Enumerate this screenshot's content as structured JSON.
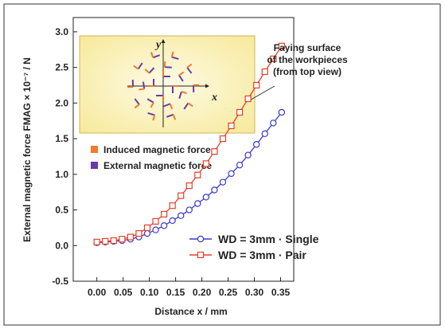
{
  "chart_data": {
    "type": "line",
    "xlabel": "Distance x / mm",
    "ylabel": "External magnetic force  FMAG × 10⁻⁷ / N",
    "x": [
      0,
      0.016,
      0.032,
      0.048,
      0.064,
      0.08,
      0.096,
      0.112,
      0.128,
      0.144,
      0.16,
      0.176,
      0.192,
      0.208,
      0.224,
      0.24,
      0.256,
      0.272,
      0.288,
      0.304,
      0.32,
      0.336,
      0.352
    ],
    "series": [
      {
        "name": "WD = 3mm · Single",
        "color": "#3a3ad0",
        "marker": "circle",
        "values": [
          0.04,
          0.05,
          0.06,
          0.07,
          0.09,
          0.12,
          0.17,
          0.22,
          0.28,
          0.35,
          0.42,
          0.5,
          0.59,
          0.68,
          0.78,
          0.89,
          1.01,
          1.13,
          1.27,
          1.42,
          1.57,
          1.72,
          1.87
        ]
      },
      {
        "name": "WD = 3mm · Pair",
        "color": "#e5402a",
        "marker": "square",
        "values": [
          0.05,
          0.06,
          0.07,
          0.09,
          0.12,
          0.17,
          0.25,
          0.34,
          0.44,
          0.56,
          0.7,
          0.84,
          0.99,
          1.15,
          1.32,
          1.5,
          1.68,
          1.87,
          2.06,
          2.25,
          2.44,
          2.62,
          2.8
        ]
      }
    ],
    "xlim": [
      -0.045,
      0.375
    ],
    "ylim": [
      -0.5,
      3.2
    ],
    "xticks": [
      {
        "value": 0,
        "label": "0.00"
      },
      {
        "value": 0.05,
        "label": "0.05"
      },
      {
        "value": 0.1,
        "label": "0.10"
      },
      {
        "value": 0.15,
        "label": "0.15"
      },
      {
        "value": 0.2,
        "label": "0.20"
      },
      {
        "value": 0.25,
        "label": "0.25"
      },
      {
        "value": 0.3,
        "label": "0.30"
      },
      {
        "value": 0.35,
        "label": "0.35"
      }
    ],
    "yticks": [
      {
        "value": -0.5,
        "label": "-0.5"
      },
      {
        "value": 0,
        "label": "0.0"
      },
      {
        "value": 0.5,
        "label": "0.5"
      },
      {
        "value": 1,
        "label": "1.0"
      },
      {
        "value": 1.5,
        "label": "1.5"
      },
      {
        "value": 2,
        "label": "2.0"
      },
      {
        "value": 2.5,
        "label": "2.5"
      },
      {
        "value": 3,
        "label": "3.0"
      }
    ],
    "legend": "lower right",
    "inset": {
      "axis_x": "x",
      "axis_y": "y",
      "legend": [
        {
          "name": "Induced magnetic force",
          "color": "#f07b2a"
        },
        {
          "name": "External magnetic force",
          "color": "#6a3aa8"
        }
      ]
    },
    "annotation": [
      "Faying surface",
      "of the workpieces",
      "(from top view)"
    ]
  }
}
